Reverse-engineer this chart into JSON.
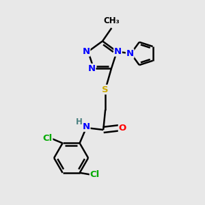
{
  "background_color": "#e8e8e8",
  "atom_colors": {
    "N": "#0000ff",
    "O": "#ff0000",
    "S": "#ccaa00",
    "Cl": "#00aa00",
    "C": "#000000",
    "H": "#4a8080"
  },
  "bond_color": "#000000",
  "figsize": [
    3.0,
    3.0
  ],
  "dpi": 100
}
